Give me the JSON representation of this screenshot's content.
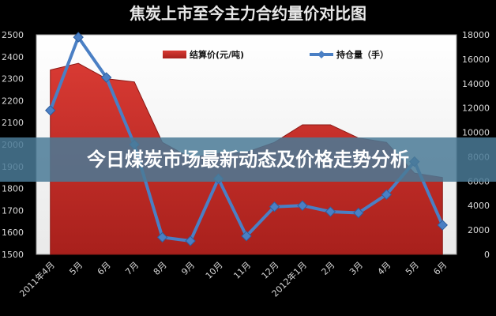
{
  "banner": {
    "text": "今日煤炭市场最新动态及价格走势分析"
  },
  "colors": {
    "area": "#cc2f2a",
    "line": "#4a7fc4",
    "plot_bg": "#ffffff",
    "banner_bg": "#4a7a96"
  },
  "chart_data": {
    "type": "area+line",
    "title": "焦炭上市至今主力合约量价对比图",
    "categories": [
      "2011年4月",
      "5月",
      "6月",
      "7月",
      "8月",
      "9月",
      "10月",
      "11月",
      "12月",
      "2012年1月",
      "2月",
      "3月",
      "4月",
      "5月",
      "6月"
    ],
    "y_left": {
      "lim": [
        1500,
        2500
      ],
      "ticks": [
        1500,
        1600,
        1700,
        1800,
        1900,
        2000,
        2100,
        2200,
        2300,
        2400,
        2500
      ]
    },
    "y_right": {
      "lim": [
        0,
        18000
      ],
      "ticks": [
        0,
        2000,
        4000,
        6000,
        8000,
        10000,
        12000,
        14000,
        16000,
        18000
      ]
    },
    "legend_position": "top-center",
    "series": [
      {
        "name": "结算价(元/吨)",
        "type": "area",
        "axis": "left",
        "values": [
          2340,
          2370,
          2300,
          2285,
          2010,
          1940,
          1960,
          1965,
          2010,
          2090,
          2090,
          2030,
          2010,
          1870,
          1850
        ]
      },
      {
        "name": "持仓量（手）",
        "type": "line",
        "axis": "right",
        "values": [
          11800,
          17800,
          14500,
          9000,
          1400,
          1100,
          6200,
          1500,
          3900,
          4000,
          3500,
          3400,
          4900,
          7600,
          2400
        ]
      }
    ]
  }
}
